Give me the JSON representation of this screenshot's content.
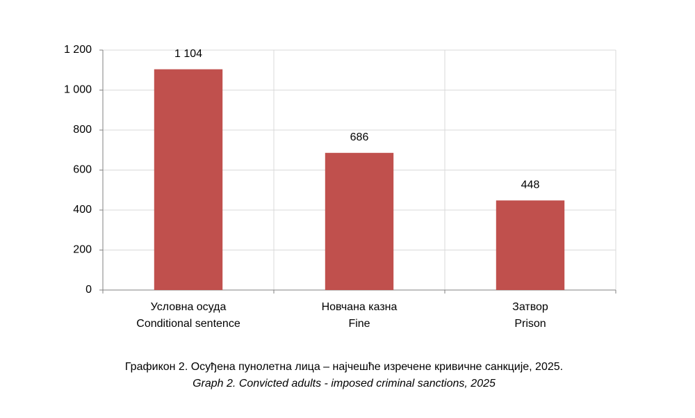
{
  "chart_data": {
    "type": "bar",
    "title": "Графикон 2. Осуђена пунолетна лица – најчешће изречене кривичне санкције, 2025.",
    "subtitle": "Graph 2. Convicted adults - imposed criminal sanctions, 2025",
    "categories": [
      [
        "Условна осуда",
        "Conditional sentence"
      ],
      [
        "Новчана казна",
        "Fine"
      ],
      [
        "Затвор",
        "Prison"
      ]
    ],
    "values": [
      1104,
      686,
      448
    ],
    "value_labels": [
      "1 104",
      "686",
      "448"
    ],
    "color": "#c0504d",
    "ylim": [
      0,
      1200
    ],
    "yticks": [
      0,
      200,
      400,
      600,
      800,
      {
        "value": 1000,
        "label": "1 000"
      },
      {
        "value": 1200,
        "label": "1 200"
      }
    ],
    "grid": true
  }
}
